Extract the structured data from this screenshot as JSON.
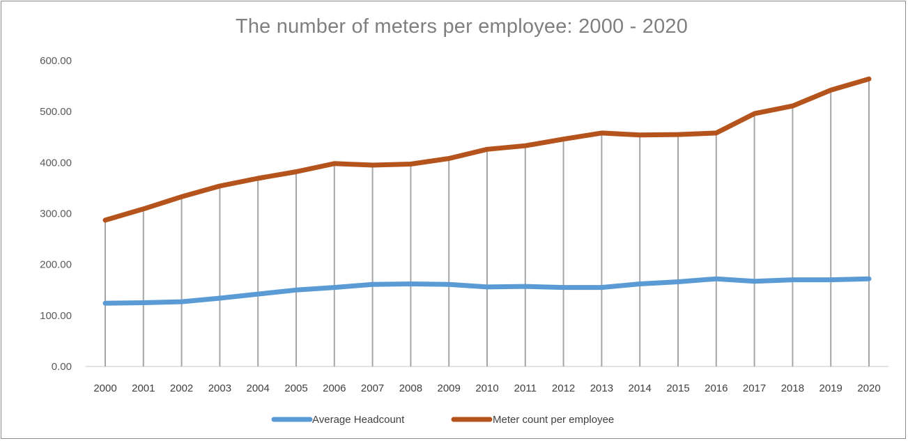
{
  "chart_data": {
    "type": "line",
    "title": "The number of meters per employee: 2000 - 2020",
    "xlabel": "",
    "ylabel": "",
    "ylim": [
      0,
      600
    ],
    "ytick_values": [
      0,
      100,
      200,
      300,
      400,
      500,
      600
    ],
    "ytick_labels": [
      "0.00",
      "100.00",
      "200.00",
      "300.00",
      "400.00",
      "500.00",
      "600.00"
    ],
    "categories": [
      "2000",
      "2001",
      "2002",
      "2003",
      "2004",
      "2005",
      "2006",
      "2007",
      "2008",
      "2009",
      "2010",
      "2011",
      "2012",
      "2013",
      "2014",
      "2015",
      "2016",
      "2017",
      "2018",
      "2019",
      "2020"
    ],
    "drop_lines": true,
    "legend_position": "bottom",
    "series": [
      {
        "name": "Average Headcount",
        "color": "#5b9bd5",
        "values": [
          124,
          125,
          127,
          134,
          142,
          150,
          155,
          161,
          162,
          161,
          156,
          157,
          155,
          155,
          162,
          166,
          172,
          167,
          170,
          170,
          172
        ]
      },
      {
        "name": "Meter count per employee",
        "color": "#b5531c",
        "values": [
          287,
          309,
          333,
          354,
          369,
          382,
          398,
          395,
          397,
          408,
          426,
          433,
          446,
          458,
          454,
          455,
          458,
          496,
          511,
          542,
          564
        ]
      }
    ]
  }
}
